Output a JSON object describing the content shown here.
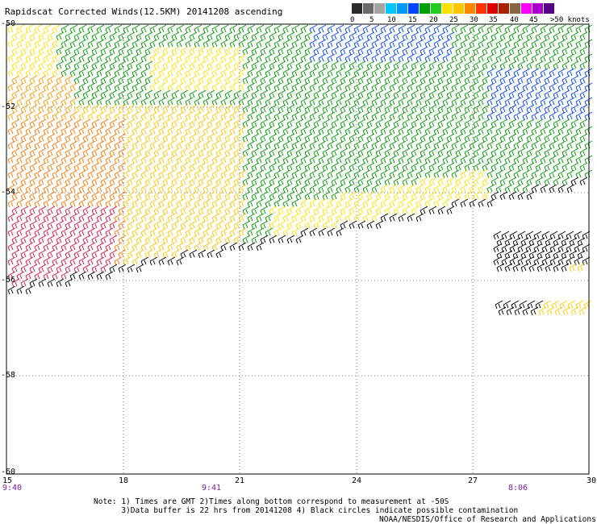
{
  "title": "Rapidscat Corrected Winds(12.5KM) 20141208 ascending",
  "legend": {
    "colors": [
      "#2b2b2b",
      "#6a6a6a",
      "#a5a5a5",
      "#00c8ff",
      "#0099ff",
      "#0044ff",
      "#00a000",
      "#22cc22",
      "#ffe000",
      "#ffc600",
      "#ff8800",
      "#ff3300",
      "#dd0000",
      "#aa2200",
      "#886644",
      "#ff00ff",
      "#aa00cc",
      "#550088"
    ],
    "labels": [
      "0",
      "5",
      "10",
      "15",
      "20",
      "25",
      "30",
      "35",
      "40",
      "45",
      ">50 knots"
    ]
  },
  "lat_labels": [
    "-50",
    "-52",
    "-54",
    "-56",
    "-58",
    "-60"
  ],
  "lon_labels": [
    "15",
    "18",
    "21",
    "24",
    "27",
    "30"
  ],
  "time_labels": [
    "9:40",
    "9:41",
    "8:06"
  ],
  "notes_line1": "Note: 1) Times are GMT 2)Times along bottom correspond to measurement at -50S",
  "notes_line2": "      3)Data buffer is 22 hrs from 20141208 4) Black circles indicate possible contamination",
  "credit": "NOAA/NESDIS/Office of Research and Applications"
}
